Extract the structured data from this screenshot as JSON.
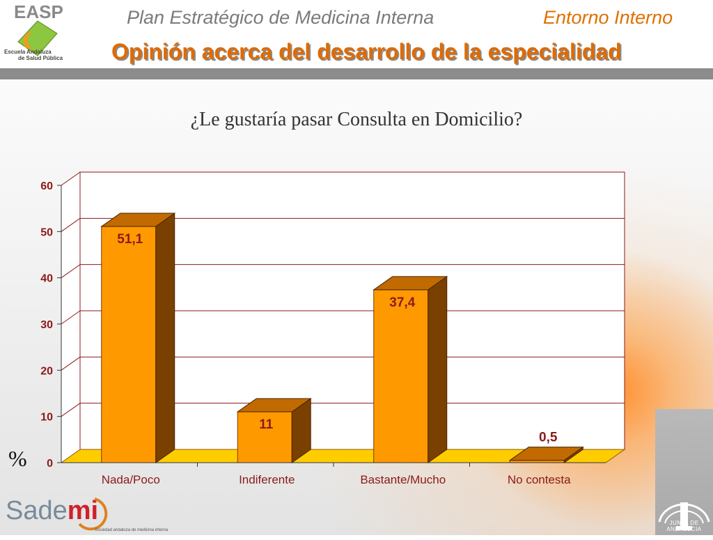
{
  "header": {
    "logo_text": "EASP",
    "logo_subtitle_1": "Escuela Andaluza",
    "logo_subtitle_2": "de Salud Pública",
    "plan_title": "Plan Estratégico de Medicina Interna",
    "section": "Entorno Interno",
    "page_title": "Opinión acerca del desarrollo de la especialidad"
  },
  "chart_data": {
    "type": "bar",
    "title": "¿Le gustaría pasar Consulta en Domicilio?",
    "ylabel": "%",
    "categories": [
      "Nada/Poco",
      "Indiferente",
      "Bastante/Mucho",
      "No contesta"
    ],
    "values": [
      51.1,
      11,
      37.4,
      0.5
    ],
    "data_labels": [
      "51,1",
      "11",
      "37,4",
      "0,5"
    ],
    "ylim": [
      0,
      60
    ],
    "yticks": [
      "0",
      "10",
      "20",
      "30",
      "40",
      "50",
      "60"
    ],
    "grid": true,
    "three_d": true,
    "colors": {
      "bar_front": "#ff9900",
      "bar_side": "#7a4000",
      "bar_top": "#c06a00",
      "floor": "#ffcc00",
      "gridline": "#8b1a1a",
      "label": "#8b1a1a"
    }
  },
  "footer": {
    "logo_text_1": "Sade",
    "logo_text_2": "mi",
    "logo_tagline": "Sociedad andaluza de medicina interna",
    "junta_text": "JUNTA DE ANDALUCIA"
  }
}
